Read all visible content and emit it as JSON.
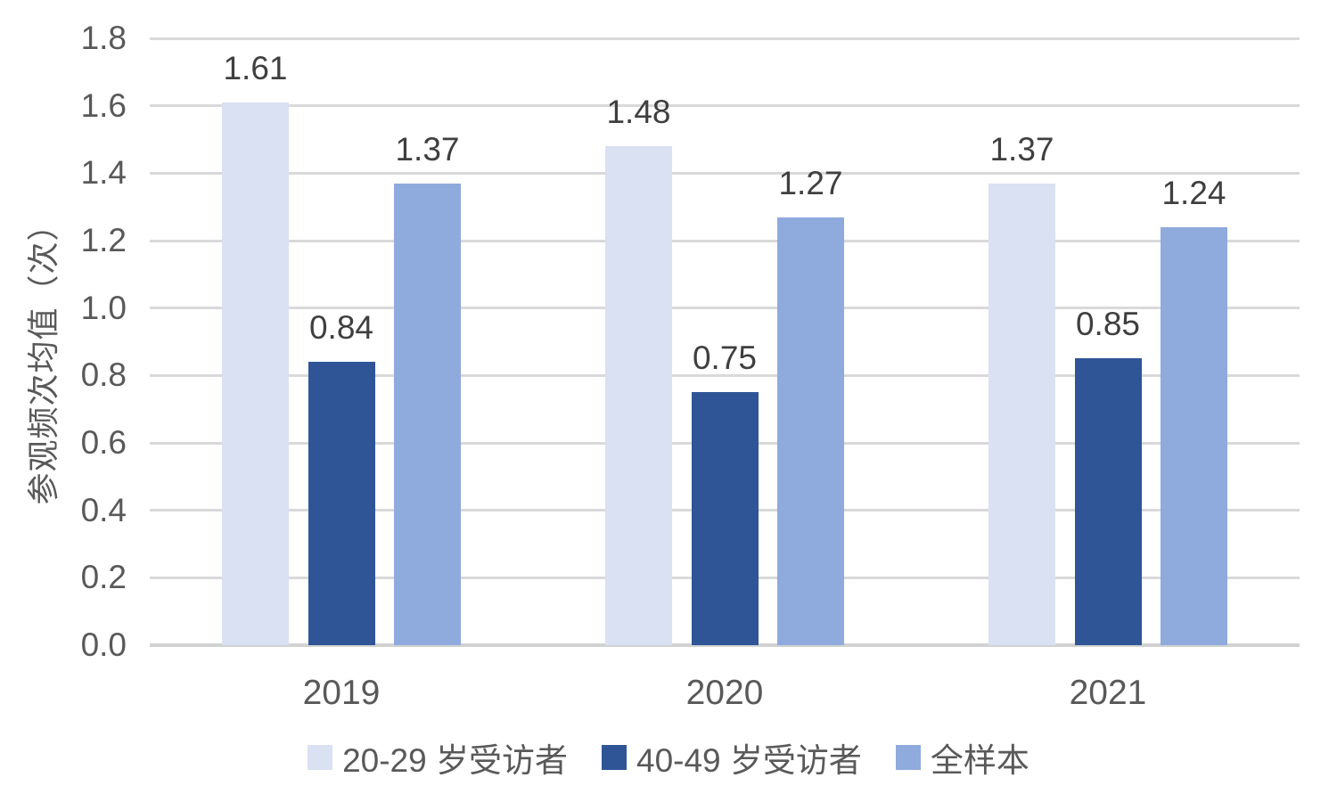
{
  "chart_data": {
    "type": "bar",
    "title": "",
    "xlabel": "",
    "ylabel": "参观频次均值（次）",
    "ylim": [
      0,
      1.8
    ],
    "ytick_step": 0.2,
    "yticks": [
      "0.0",
      "0.2",
      "0.4",
      "0.6",
      "0.8",
      "1.0",
      "1.2",
      "1.4",
      "1.6",
      "1.8"
    ],
    "grid": "horizontal",
    "legend_position": "bottom",
    "categories": [
      "2019",
      "2020",
      "2021"
    ],
    "series": [
      {
        "name": "20-29 岁受访者",
        "color": "#d9e1f2",
        "values": [
          1.61,
          1.48,
          1.37
        ]
      },
      {
        "name": "40-49 岁受访者",
        "color": "#2f5597",
        "values": [
          0.84,
          0.75,
          0.85
        ]
      },
      {
        "name": "全样本",
        "color": "#8faadc",
        "values": [
          1.37,
          1.27,
          1.24
        ]
      }
    ],
    "value_labels": [
      [
        "1.61",
        "1.48",
        "1.37"
      ],
      [
        "0.84",
        "0.75",
        "0.85"
      ],
      [
        "1.37",
        "1.27",
        "1.24"
      ]
    ]
  },
  "style": {
    "gridline_color": "#d9d9d9",
    "baseline_color": "#d2d2d2",
    "tick_text_color": "#595959",
    "value_text_color": "#3f3f3f",
    "background": "#ffffff"
  }
}
